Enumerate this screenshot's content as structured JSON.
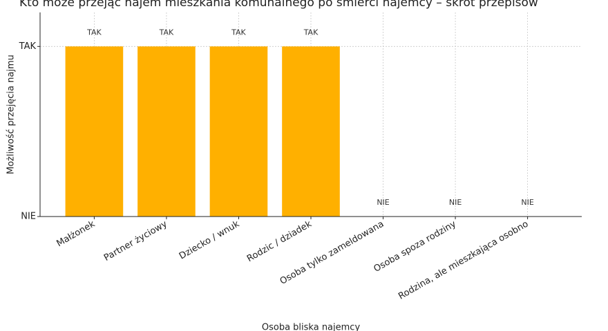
{
  "chart_data": {
    "type": "bar",
    "title": "Kto może przejąć najem mieszkania komunalnego po śmierci najemcy – skrót przepisów",
    "x_label": "Osoba bliska najemcy",
    "y_label": "Możliwość przejęcia najmu",
    "categories": [
      "Małżonek",
      "Partner życiowy",
      "Dziecko / wnuk",
      "Rodzic / dziadek",
      "Osoba tylko zameldowana",
      "Osoba spoza rodziny",
      "Rodzina, ale mieszkająca osobno"
    ],
    "values": [
      1,
      1,
      1,
      1,
      0,
      0,
      0
    ],
    "value_labels": [
      "TAK",
      "TAK",
      "TAK",
      "TAK",
      "NIE",
      "NIE",
      "NIE"
    ],
    "color": "#ffb000",
    "ylim": [
      0,
      1.2
    ],
    "yticks": [
      {
        "value": 0,
        "label": "NIE"
      },
      {
        "value": 1,
        "label": "TAK"
      }
    ],
    "grid": true
  }
}
